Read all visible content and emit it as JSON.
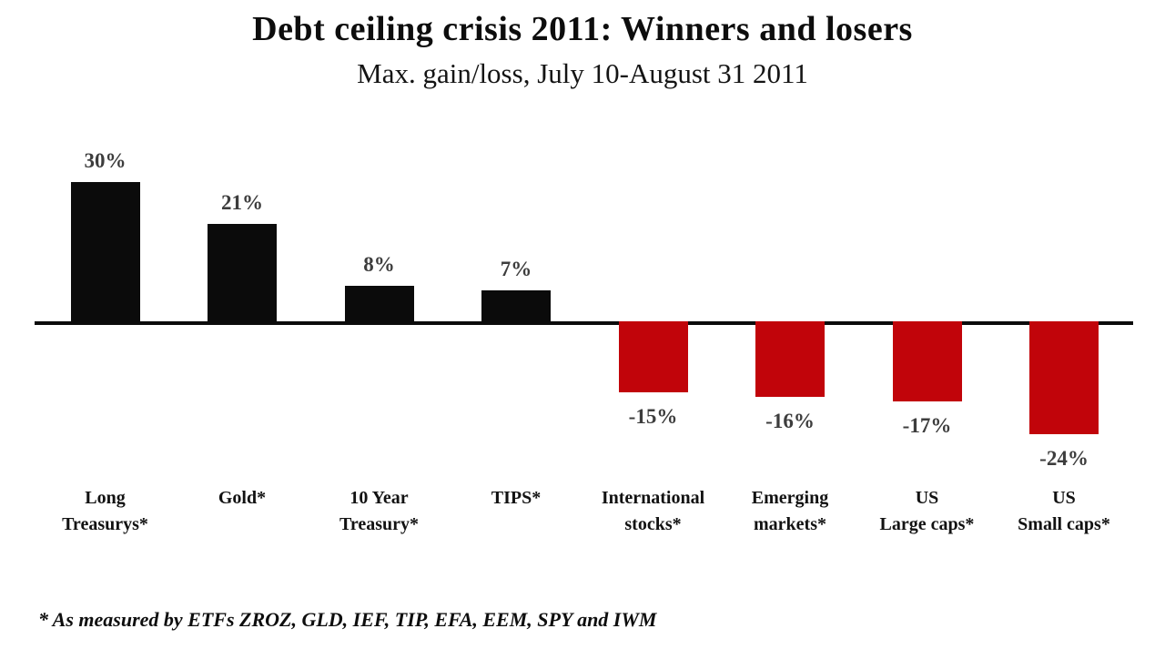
{
  "header": {
    "title": "Debt ceiling crisis 2011: Winners and losers",
    "subtitle": "Max. gain/loss, July 10-August 31 2011"
  },
  "chart_data": {
    "type": "bar",
    "title": "Debt ceiling crisis 2011: Winners and losers",
    "subtitle": "Max. gain/loss, July 10-August 31 2011",
    "xlabel": "",
    "ylabel": "",
    "categories": [
      "Long Treasurys*",
      "Gold*",
      "10 Year Treasury*",
      "TIPS*",
      "International stocks*",
      "Emerging markets*",
      "US Large caps*",
      "US Small caps*"
    ],
    "category_label_lines": [
      "Long\nTreasurys*",
      "Gold*",
      "10 Year\nTreasury*",
      "TIPS*",
      "International\nstocks*",
      "Emerging\nmarkets*",
      "US\nLarge caps*",
      "US\nSmall caps*"
    ],
    "values": [
      30,
      21,
      8,
      7,
      -15,
      -16,
      -17,
      -24
    ],
    "value_labels": [
      "30%",
      "21%",
      "8%",
      "7%",
      "-15%",
      "-16%",
      "-17%",
      "-24%"
    ],
    "ylim": [
      -30,
      35
    ],
    "grid": false,
    "legend_position": "none",
    "colors": {
      "positive_bar": "#0b0b0b",
      "negative_bar": "#c1040a",
      "value_label": "#3d3d3d",
      "axis_line": "#0c0c0c"
    }
  },
  "footnote": {
    "text": "* As measured by ETFs ZROZ, GLD, IEF, TIP, EFA, EEM, SPY and IWM"
  }
}
